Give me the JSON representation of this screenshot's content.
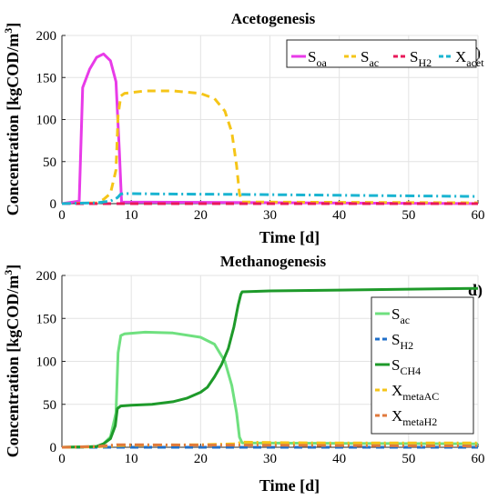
{
  "chart_data": [
    {
      "type": "line",
      "panel_label": "c)",
      "title": "Acetogenesis",
      "xlabel": "Time [d]",
      "ylabel": "Concentration [kgCOD/m3]",
      "xlim": [
        0,
        60
      ],
      "ylim": [
        0,
        200
      ],
      "xticks": [
        "0",
        "10",
        "20",
        "30",
        "40",
        "50",
        "60"
      ],
      "yticks": [
        "0",
        "50",
        "100",
        "150",
        "200"
      ],
      "grid": true,
      "legend_position": "top-right",
      "legend_layout": "horizontal",
      "series": [
        {
          "name": "S_oa",
          "label_main": "S",
          "label_sub": "oa",
          "color": "#e83be8",
          "dash": "solid",
          "points": [
            [
              0,
              0
            ],
            [
              2.5,
              3
            ],
            [
              3,
              138
            ],
            [
              4,
              160
            ],
            [
              5,
              174
            ],
            [
              6,
              178
            ],
            [
              7,
              170
            ],
            [
              7.8,
              145
            ],
            [
              8.3,
              60
            ],
            [
              8.6,
              2
            ],
            [
              60,
              0
            ]
          ]
        },
        {
          "name": "S_ac",
          "label_main": "S",
          "label_sub": "ac",
          "color": "#f5c518",
          "dash": "dashed",
          "points": [
            [
              0,
              0
            ],
            [
              5,
              1
            ],
            [
              6,
              5
            ],
            [
              7,
              12
            ],
            [
              7.8,
              40
            ],
            [
              8.1,
              105
            ],
            [
              8.5,
              128
            ],
            [
              9,
              131
            ],
            [
              12,
              134
            ],
            [
              16,
              134
            ],
            [
              20,
              131
            ],
            [
              22,
              125
            ],
            [
              23.5,
              110
            ],
            [
              24.5,
              85
            ],
            [
              25.2,
              45
            ],
            [
              25.6,
              12
            ],
            [
              26,
              2
            ],
            [
              60,
              1
            ]
          ]
        },
        {
          "name": "S_H2",
          "label_main": "S",
          "label_sub": "H2",
          "color": "#e8195a",
          "dash": "dashed",
          "points": [
            [
              0,
              0
            ],
            [
              60,
              0
            ]
          ]
        },
        {
          "name": "X_acet",
          "label_main": "X",
          "label_sub": "acet",
          "color": "#1ab4d1",
          "dash": "dashdot",
          "points": [
            [
              0,
              0
            ],
            [
              5,
              1
            ],
            [
              7,
              3
            ],
            [
              8,
              7
            ],
            [
              8.5,
              11.5
            ],
            [
              9,
              12
            ],
            [
              15,
              11.5
            ],
            [
              25,
              11
            ],
            [
              40,
              10
            ],
            [
              60,
              8.5
            ]
          ]
        }
      ]
    },
    {
      "type": "line",
      "panel_label": "d)",
      "title": "Methanogenesis",
      "xlabel": "Time [d]",
      "ylabel": "Concentration [kgCOD/m3]",
      "xlim": [
        0,
        60
      ],
      "ylim": [
        0,
        200
      ],
      "xticks": [
        "0",
        "10",
        "20",
        "30",
        "40",
        "50",
        "60"
      ],
      "yticks": [
        "0",
        "50",
        "100",
        "150",
        "200"
      ],
      "grid": true,
      "legend_position": "right",
      "legend_layout": "vertical",
      "series": [
        {
          "name": "S_ac",
          "label_main": "S",
          "label_sub": "ac",
          "color": "#6fe07f",
          "dash": "solid",
          "points": [
            [
              0,
              0
            ],
            [
              5,
              1
            ],
            [
              6,
              4
            ],
            [
              7,
              12
            ],
            [
              7.8,
              40
            ],
            [
              8.1,
              110
            ],
            [
              8.5,
              130
            ],
            [
              9,
              132
            ],
            [
              12,
              134
            ],
            [
              16,
              133
            ],
            [
              20,
              128
            ],
            [
              22,
              120
            ],
            [
              23.5,
              100
            ],
            [
              24.5,
              72
            ],
            [
              25.2,
              40
            ],
            [
              25.6,
              12
            ],
            [
              26,
              5
            ],
            [
              60,
              4
            ]
          ]
        },
        {
          "name": "S_H2",
          "label_main": "S",
          "label_sub": "H2",
          "color": "#1f6fc9",
          "dash": "dashed",
          "points": [
            [
              0,
              0
            ],
            [
              60,
              0
            ]
          ]
        },
        {
          "name": "S_CH4",
          "label_main": "S",
          "label_sub": "CH4",
          "color": "#1e9a2a",
          "dash": "solid",
          "points": [
            [
              0,
              0
            ],
            [
              4,
              0.5
            ],
            [
              5,
              1
            ],
            [
              6,
              4
            ],
            [
              7,
              10
            ],
            [
              7.7,
              25
            ],
            [
              8,
              45
            ],
            [
              8.5,
              48
            ],
            [
              10,
              49
            ],
            [
              13,
              50
            ],
            [
              16,
              53
            ],
            [
              18,
              57
            ],
            [
              20,
              64
            ],
            [
              21,
              70
            ],
            [
              22,
              82
            ],
            [
              23,
              96
            ],
            [
              24,
              115
            ],
            [
              24.8,
              140
            ],
            [
              25.4,
              165
            ],
            [
              25.8,
              178
            ],
            [
              26,
              181
            ],
            [
              30,
              182
            ],
            [
              40,
              183
            ],
            [
              50,
              184
            ],
            [
              60,
              185
            ]
          ]
        },
        {
          "name": "X_metaAC",
          "label_main": "X",
          "label_sub": "metaAC",
          "color": "#f5c518",
          "dash": "dashdot",
          "points": [
            [
              0,
              0
            ],
            [
              5,
              0.5
            ],
            [
              8,
              2
            ],
            [
              12,
              2.5
            ],
            [
              20,
              3
            ],
            [
              25,
              4
            ],
            [
              26,
              6
            ],
            [
              30,
              5.5
            ],
            [
              40,
              5
            ],
            [
              60,
              5
            ]
          ]
        },
        {
          "name": "X_metaH2",
          "label_main": "X",
          "label_sub": "metaH2",
          "color": "#e07a3c",
          "dash": "dashdot",
          "points": [
            [
              0,
              0
            ],
            [
              5,
              1
            ],
            [
              8,
              3
            ],
            [
              10,
              3
            ],
            [
              20,
              2.5
            ],
            [
              26,
              2.5
            ],
            [
              40,
              2
            ],
            [
              60,
              1.5
            ]
          ]
        }
      ]
    }
  ]
}
